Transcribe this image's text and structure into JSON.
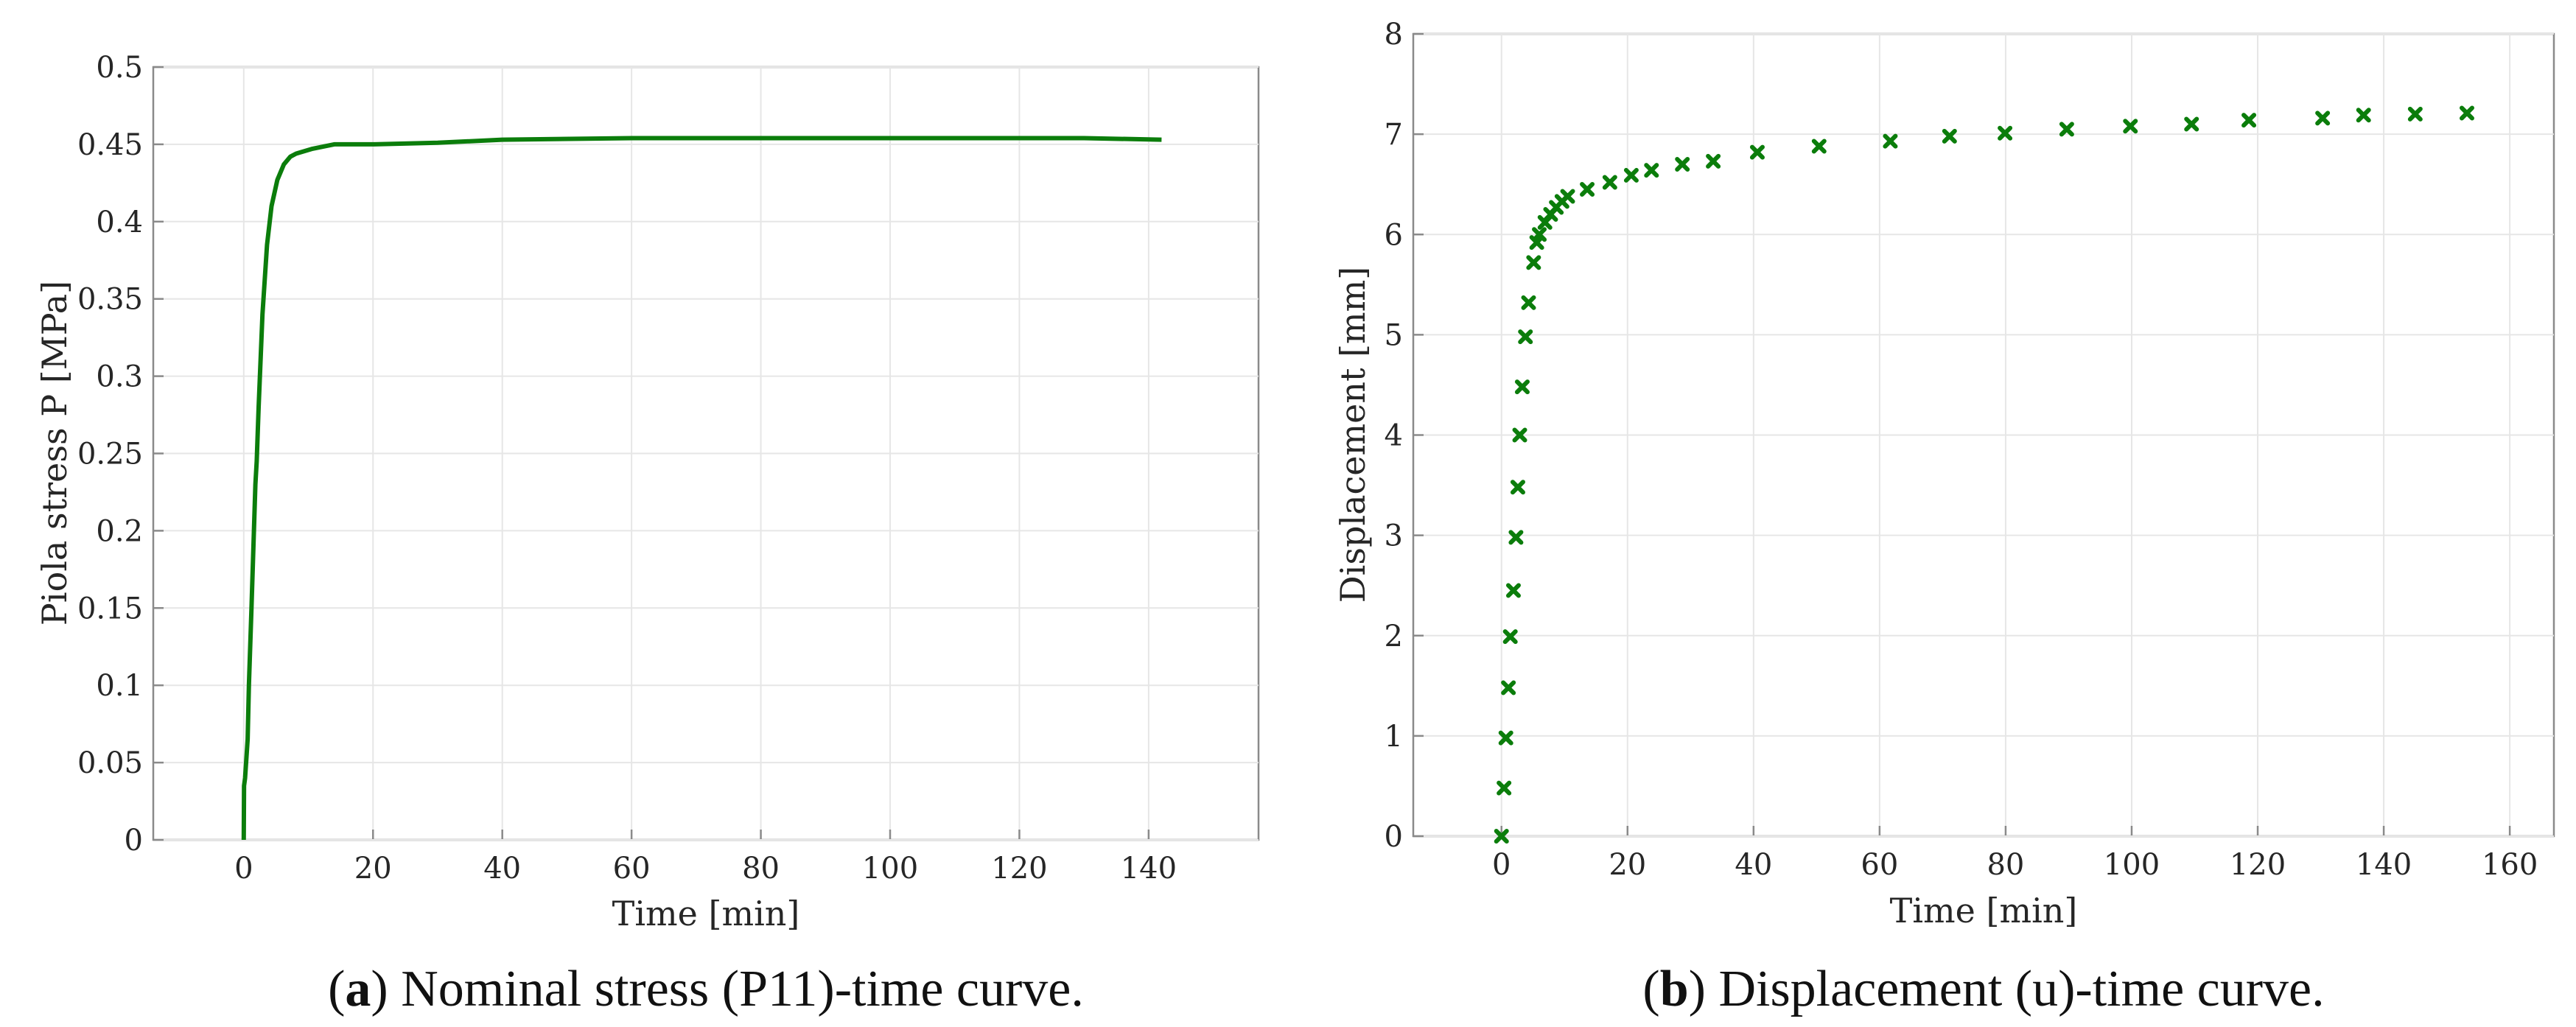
{
  "series_color": "#0b7d0b",
  "chart_data": [
    {
      "type": "line",
      "title": "",
      "xlabel": "Time [min]",
      "ylabel": "Piola stress P [MPa]",
      "xlim": [
        -14,
        157
      ],
      "ylim": [
        0,
        0.5
      ],
      "xticks": [
        0,
        20,
        40,
        60,
        80,
        100,
        120,
        140
      ],
      "xtick_labels": [
        "0",
        "20",
        "40",
        "60",
        "80",
        "100",
        "120",
        "140"
      ],
      "yticks": [
        0,
        0.05,
        0.1,
        0.15,
        0.2,
        0.25,
        0.3,
        0.35,
        0.4,
        0.45,
        0.5
      ],
      "ytick_labels": [
        "0",
        "0.05",
        "0.1",
        "0.15",
        "0.2",
        "0.25",
        "0.3",
        "0.35",
        "0.4",
        "0.45",
        "0.5"
      ],
      "grid": true,
      "series": [
        {
          "name": "Piola stress",
          "x": [
            0,
            0.05,
            0.2,
            0.6,
            0.8,
            1.2,
            1.8,
            2.0,
            2.3,
            2.9,
            3.6,
            4.3,
            5.2,
            6.2,
            7.2,
            8.1,
            10.5,
            14.0,
            20,
            30,
            40,
            60,
            80,
            100,
            120,
            130,
            142
          ],
          "y": [
            0,
            0.035,
            0.04,
            0.065,
            0.1,
            0.15,
            0.23,
            0.245,
            0.28,
            0.34,
            0.385,
            0.41,
            0.427,
            0.437,
            0.442,
            0.444,
            0.447,
            0.45,
            0.45,
            0.451,
            0.453,
            0.454,
            0.454,
            0.454,
            0.454,
            0.454,
            0.453
          ]
        }
      ],
      "caption_label": "(a)",
      "caption_bold": "a",
      "caption_text": "Nominal stress (P11)-time curve."
    },
    {
      "type": "scatter",
      "title": "",
      "xlabel": "Time [min]",
      "ylabel": "Displacement [mm]",
      "xlim": [
        -14,
        167
      ],
      "ylim": [
        0,
        8
      ],
      "xticks": [
        0,
        20,
        40,
        60,
        80,
        100,
        120,
        140,
        160
      ],
      "xtick_labels": [
        "0",
        "20",
        "40",
        "60",
        "80",
        "100",
        "120",
        "140",
        "160"
      ],
      "yticks": [
        0,
        1,
        2,
        3,
        4,
        5,
        6,
        7,
        8
      ],
      "ytick_labels": [
        "0",
        "1",
        "2",
        "3",
        "4",
        "5",
        "6",
        "7",
        "8"
      ],
      "grid": true,
      "marker": "x",
      "series": [
        {
          "name": "Displacement",
          "x": [
            0,
            0.4,
            0.7,
            1.1,
            1.4,
            1.9,
            2.3,
            2.6,
            2.9,
            3.3,
            3.8,
            4.3,
            5.1,
            5.6,
            6.0,
            6.9,
            7.8,
            8.7,
            9.6,
            10.5,
            13.6,
            17.2,
            20.6,
            23.8,
            28.7,
            33.6,
            40.6,
            50.4,
            61.7,
            71.1,
            79.9,
            89.7,
            99.8,
            109.5,
            118.6,
            130.3,
            136.8,
            145.0,
            153.2
          ],
          "y": [
            0,
            0.48,
            0.98,
            1.48,
            1.99,
            2.45,
            2.98,
            3.48,
            4.0,
            4.48,
            4.98,
            5.32,
            5.72,
            5.92,
            6.0,
            6.12,
            6.2,
            6.27,
            6.33,
            6.38,
            6.45,
            6.52,
            6.59,
            6.64,
            6.7,
            6.73,
            6.82,
            6.88,
            6.93,
            6.98,
            7.01,
            7.05,
            7.08,
            7.1,
            7.14,
            7.16,
            7.19,
            7.2,
            7.21
          ]
        }
      ],
      "caption_label": "(b)",
      "caption_bold": "b",
      "caption_text": "Displacement (u)-time curve."
    }
  ]
}
